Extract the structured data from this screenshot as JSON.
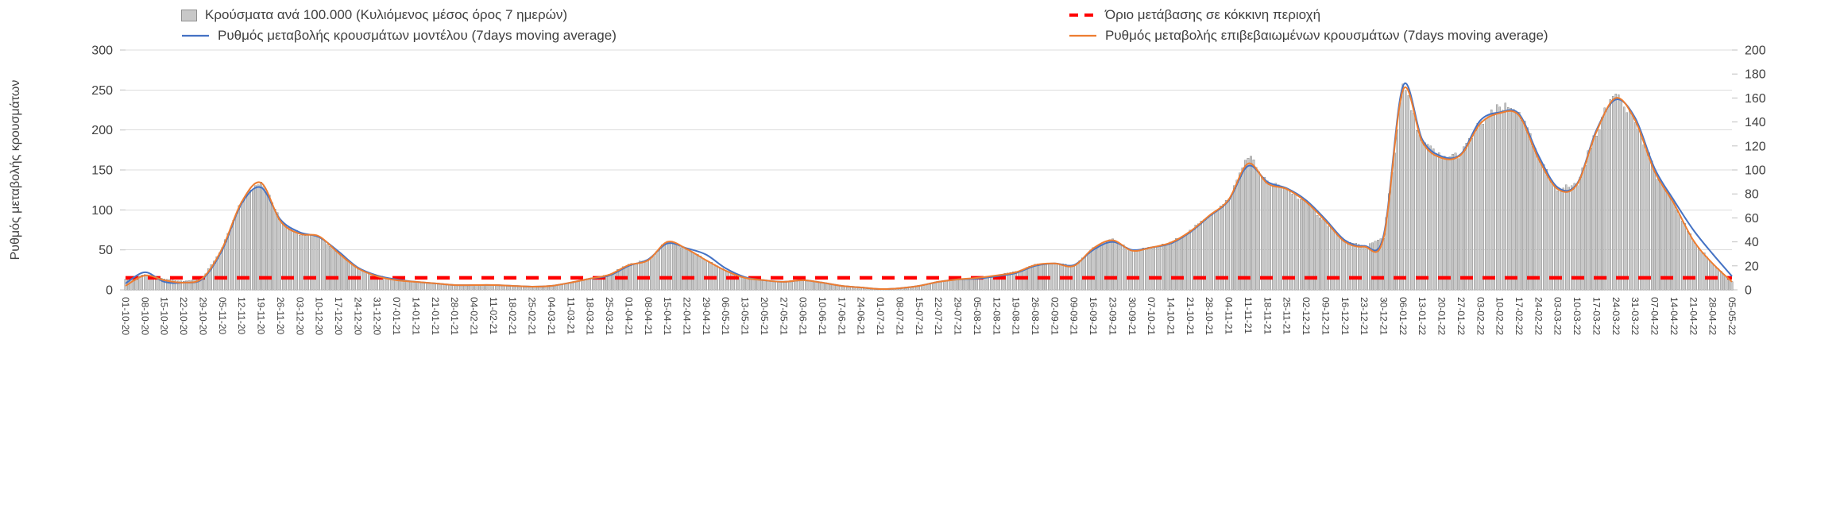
{
  "chart_data": {
    "type": "combo-bar-line",
    "title": "",
    "ylabel_left": "Ρυθμός μεταβολής κρουσμάτων",
    "grid": "horizontal",
    "legend_position": "top",
    "left_axis": {
      "min": 0,
      "max": 300,
      "step": 50
    },
    "right_axis": {
      "min": 0,
      "max": 200,
      "step": 20
    },
    "threshold": {
      "label": "Όριο μετάβασης σε κόκκινη περιοχή",
      "value": 15,
      "axis": "left",
      "color": "#FF0000",
      "style": "dashed"
    },
    "categories": [
      "01-10-20",
      "08-10-20",
      "15-10-20",
      "22-10-20",
      "29-10-20",
      "05-11-20",
      "12-11-20",
      "19-11-20",
      "26-11-20",
      "03-12-20",
      "10-12-20",
      "17-12-20",
      "24-12-20",
      "31-12-20",
      "07-01-21",
      "14-01-21",
      "21-01-21",
      "28-01-21",
      "04-02-21",
      "11-02-21",
      "18-02-21",
      "25-02-21",
      "04-03-21",
      "11-03-21",
      "18-03-21",
      "25-03-21",
      "01-04-21",
      "08-04-21",
      "15-04-21",
      "22-04-21",
      "29-04-21",
      "06-05-21",
      "13-05-21",
      "20-05-21",
      "27-05-21",
      "03-06-21",
      "10-06-21",
      "17-06-21",
      "24-06-21",
      "01-07-21",
      "08-07-21",
      "15-07-21",
      "22-07-21",
      "29-07-21",
      "05-08-21",
      "12-08-21",
      "19-08-21",
      "26-08-21",
      "02-09-21",
      "09-09-21",
      "16-09-21",
      "23-09-21",
      "30-09-21",
      "07-10-21",
      "14-10-21",
      "21-10-21",
      "28-10-21",
      "04-11-21",
      "11-11-21",
      "18-11-21",
      "25-11-21",
      "02-12-21",
      "09-12-21",
      "16-12-21",
      "23-12-21",
      "30-12-21",
      "06-01-22",
      "13-01-22",
      "20-01-22",
      "27-01-22",
      "03-02-22",
      "10-02-22",
      "17-02-22",
      "24-02-22",
      "03-03-22",
      "10-03-22",
      "17-03-22",
      "24-03-22",
      "31-03-22",
      "07-04-22",
      "14-04-22",
      "21-04-22",
      "28-04-22",
      "05-05-22"
    ],
    "series": [
      {
        "name": "Κρούσματα ανά 100.000 (Κυλιόμενος μέσος όρος 7 ημερών)",
        "type": "bar",
        "axis": "right",
        "color": "#c8c8c8",
        "border_color": "#909090",
        "values": [
          9,
          13,
          9,
          7,
          10,
          35,
          74,
          92,
          58,
          47,
          45,
          31,
          18,
          11,
          8,
          7,
          5,
          4,
          4,
          4,
          3,
          3,
          3,
          6,
          9,
          13,
          21,
          25,
          41,
          34,
          25,
          16,
          10,
          8,
          7,
          8,
          6,
          3,
          2,
          1,
          1,
          3,
          7,
          9,
          10,
          12,
          15,
          21,
          22,
          20,
          35,
          42,
          33,
          35,
          39,
          49,
          62,
          75,
          113,
          89,
          84,
          73,
          57,
          40,
          36,
          43,
          172,
          123,
          110,
          113,
          139,
          152,
          150,
          109,
          84,
          88,
          132,
          168,
          141,
          99,
          72,
          41,
          22,
          7
        ]
      },
      {
        "name": "Ρυθμός μεταβολής κρουσμάτων μοντέλου (7days moving average)",
        "type": "line",
        "axis": "left",
        "color": "#4472C4",
        "values": [
          8,
          22,
          10,
          9,
          14,
          50,
          108,
          128,
          88,
          72,
          66,
          48,
          28,
          18,
          13,
          10,
          8,
          6,
          6,
          6,
          5,
          4,
          5,
          9,
          14,
          18,
          30,
          38,
          58,
          52,
          44,
          27,
          16,
          12,
          10,
          12,
          9,
          5,
          3,
          1,
          2,
          5,
          10,
          13,
          14,
          17,
          21,
          30,
          33,
          31,
          50,
          60,
          50,
          53,
          58,
          72,
          92,
          112,
          155,
          135,
          127,
          112,
          88,
          62,
          55,
          68,
          255,
          188,
          167,
          170,
          212,
          222,
          220,
          168,
          128,
          133,
          200,
          238,
          215,
          152,
          112,
          75,
          45,
          17
        ]
      },
      {
        "name": "Ρυθμός μεταβολής επιβεβαιωμένων κρουσμάτων (7days moving average)",
        "type": "line",
        "axis": "left",
        "color": "#ED7D31",
        "values": [
          5,
          18,
          12,
          9,
          15,
          52,
          110,
          134,
          86,
          70,
          67,
          46,
          27,
          17,
          12,
          10,
          8,
          6,
          6,
          6,
          5,
          4,
          5,
          9,
          14,
          19,
          31,
          37,
          60,
          51,
          37,
          24,
          15,
          12,
          10,
          12,
          9,
          5,
          3,
          1,
          2,
          5,
          10,
          13,
          15,
          18,
          22,
          31,
          33,
          30,
          52,
          62,
          49,
          53,
          59,
          73,
          93,
          113,
          158,
          133,
          126,
          110,
          86,
          60,
          54,
          65,
          250,
          185,
          165,
          169,
          208,
          221,
          218,
          164,
          126,
          132,
          198,
          240,
          212,
          148,
          108,
          62,
          33,
          10
        ]
      }
    ]
  }
}
